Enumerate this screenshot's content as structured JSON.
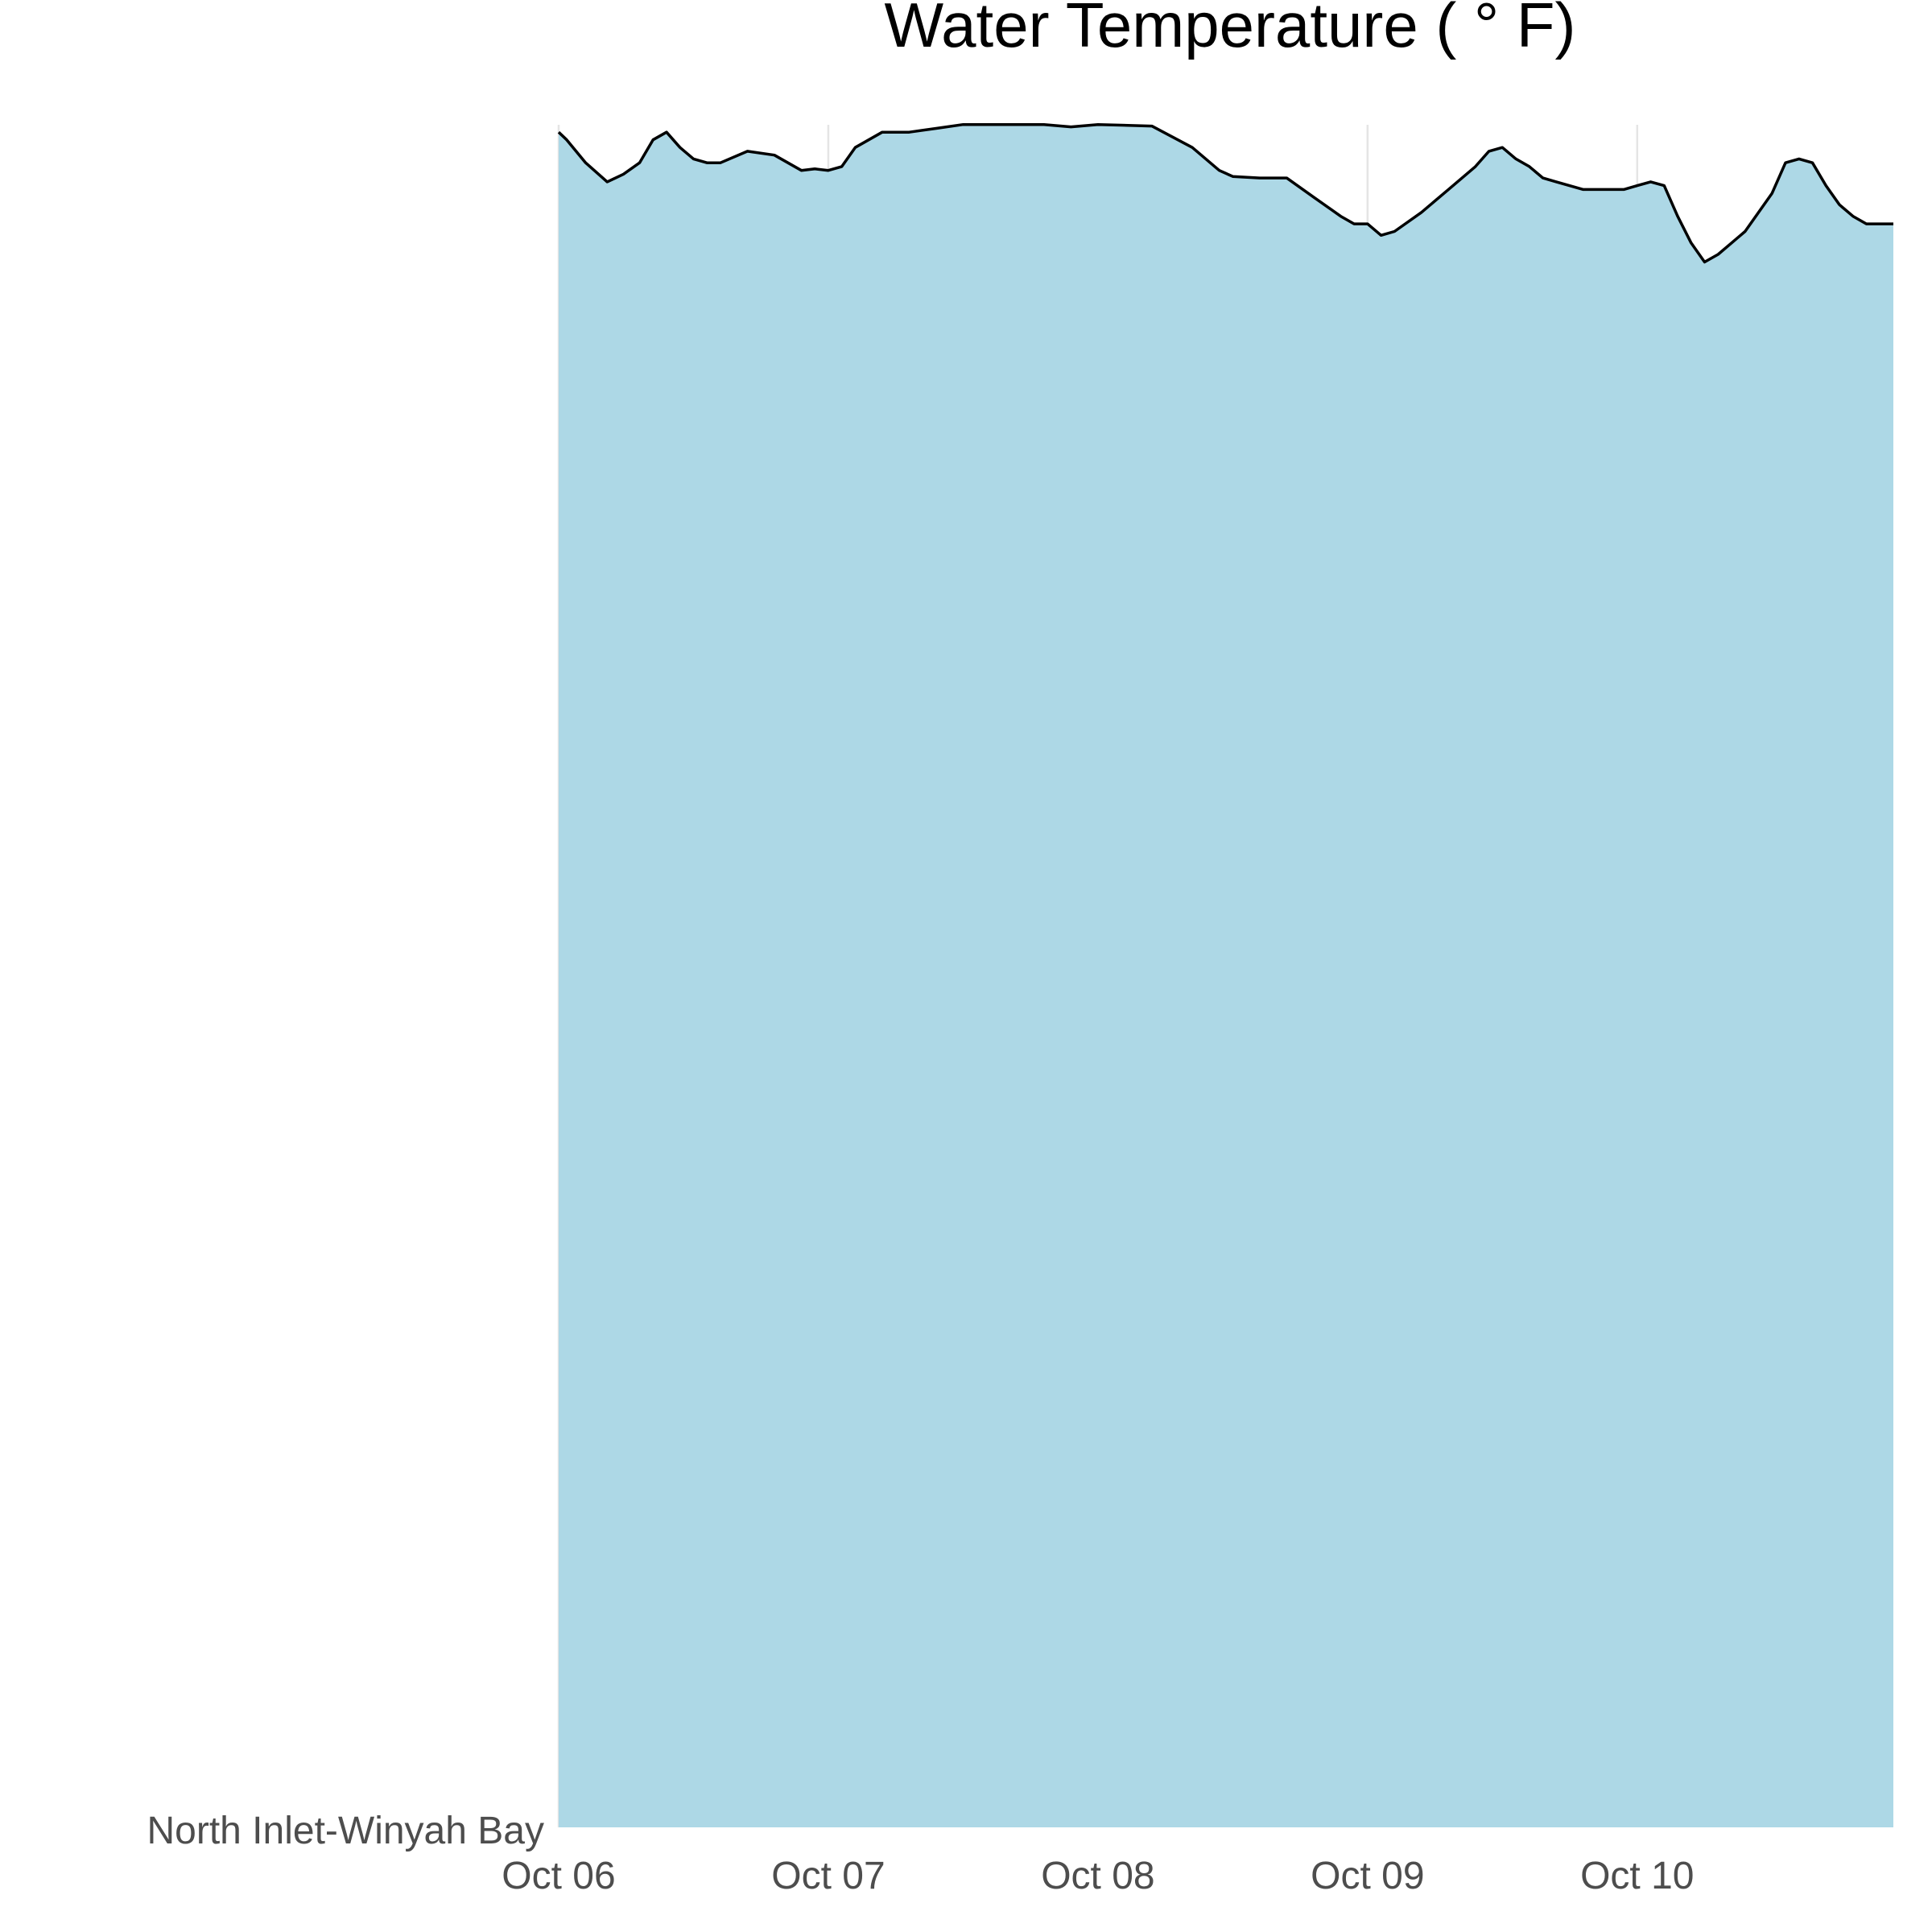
{
  "chart_data": {
    "type": "area",
    "title": "Water Temperature ( ° F)",
    "xlabel": "",
    "ylabel": "",
    "x_tick_labels": [
      "Oct 06",
      "Oct 07",
      "Oct 08",
      "Oct 09",
      "Oct 10"
    ],
    "y_category_label": "North Inlet-Winyah Bay",
    "grid": "vertical major only",
    "legend": "none",
    "fill_color": "#add8e6",
    "line_color": "#000000",
    "series": [
      {
        "x_days": [
          0.0,
          0.03,
          0.1,
          0.18,
          0.24,
          0.3,
          0.35,
          0.4,
          0.45,
          0.5,
          0.55,
          0.6,
          0.7,
          0.8,
          0.9,
          0.95,
          1.0,
          1.05,
          1.1,
          1.2,
          1.3,
          1.4,
          1.5,
          1.6,
          1.7,
          1.8,
          1.9,
          2.0,
          2.2,
          2.35,
          2.45,
          2.5,
          2.6,
          2.7,
          2.8,
          2.9,
          2.95,
          3.0,
          3.05,
          3.1,
          3.2,
          3.3,
          3.4,
          3.45,
          3.5,
          3.55,
          3.6,
          3.65,
          3.7,
          3.8,
          3.9,
          3.95,
          4.0,
          4.05,
          4.1,
          4.15,
          4.2,
          4.25,
          4.3,
          4.35,
          4.4,
          4.5,
          4.55,
          4.6,
          4.65,
          4.7,
          4.75,
          4.8,
          4.85,
          4.95
        ],
        "values": [
          77.2,
          77.1,
          76.8,
          76.55,
          76.65,
          76.8,
          77.1,
          77.2,
          77.0,
          76.85,
          76.8,
          76.8,
          76.95,
          76.9,
          76.7,
          76.72,
          76.7,
          76.75,
          77.0,
          77.2,
          77.2,
          77.25,
          77.3,
          77.3,
          77.3,
          77.3,
          77.27,
          77.3,
          77.28,
          77.0,
          76.7,
          76.62,
          76.6,
          76.6,
          76.35,
          76.1,
          76.0,
          76.0,
          75.85,
          75.9,
          76.15,
          76.45,
          76.75,
          76.95,
          77.0,
          76.85,
          76.75,
          76.6,
          76.55,
          76.45,
          76.45,
          76.45,
          76.5,
          76.55,
          76.5,
          76.1,
          75.75,
          75.5,
          75.6,
          75.75,
          75.9,
          76.4,
          76.8,
          76.85,
          76.8,
          76.5,
          76.25,
          76.1,
          76.0,
          76.0
        ]
      }
    ],
    "xlim": [
      0,
      4.95
    ],
    "ylim": [
      55.0,
      77.35
    ]
  }
}
